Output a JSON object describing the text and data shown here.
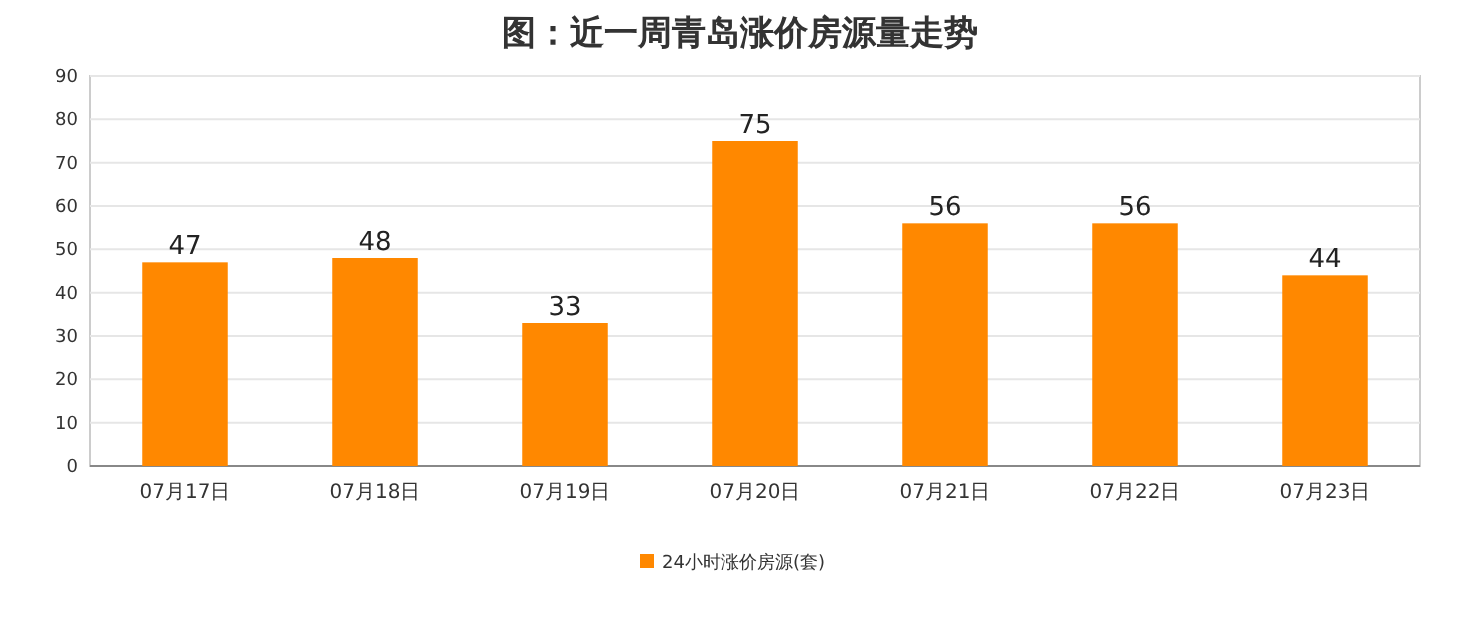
{
  "chart_data": {
    "type": "bar",
    "title": "图：近一周青岛涨价房源量走势",
    "categories": [
      "07月17日",
      "07月18日",
      "07月19日",
      "07月20日",
      "07月21日",
      "07月22日",
      "07月23日"
    ],
    "series": [
      {
        "name": "24小时涨价房源(套)",
        "color": "#ff8800",
        "values": [
          47,
          48,
          33,
          75,
          56,
          56,
          44
        ]
      }
    ],
    "ylim": [
      0,
      90
    ],
    "yticks": [
      0,
      10,
      20,
      30,
      40,
      50,
      60,
      70,
      80,
      90
    ],
    "grid": "y",
    "legend": "bottom",
    "data_labels": true
  }
}
